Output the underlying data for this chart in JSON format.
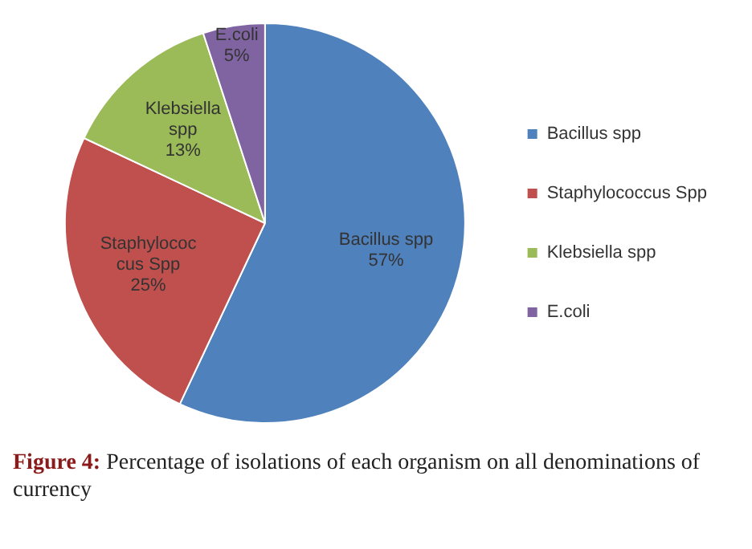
{
  "chart_data": {
    "type": "pie",
    "categories": [
      "Bacillus spp",
      "Staphylococcus Spp",
      "Klebsiella spp",
      "E.coli"
    ],
    "values": [
      57,
      25,
      13,
      5
    ],
    "value_labels": [
      "57%",
      "25%",
      "13%",
      "5%"
    ],
    "colors": [
      "#4f81bd",
      "#c0504d",
      "#9bbb59",
      "#8064a2"
    ],
    "legend": "right",
    "annotations": [
      "Figure 4: Percentage of isolations of each organism on all denominations of currency"
    ]
  }
}
